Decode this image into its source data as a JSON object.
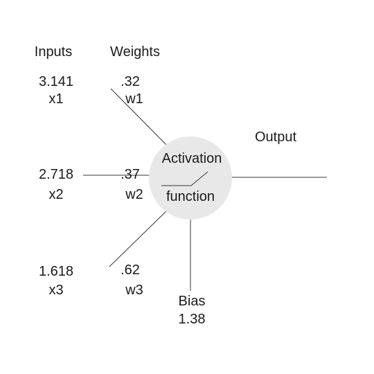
{
  "headers": {
    "inputs": "Inputs",
    "weights": "Weights",
    "output": "Output"
  },
  "inputs": [
    {
      "value": "3.141",
      "name": "x1"
    },
    {
      "value": "2.718",
      "name": "x2"
    },
    {
      "value": "1.618",
      "name": "x3"
    }
  ],
  "weights": [
    {
      "value": ".32",
      "name": "w1"
    },
    {
      "value": ".37",
      "name": "w2"
    },
    {
      "value": ".62",
      "name": "w3"
    }
  ],
  "neuron": {
    "line1": "Activation",
    "line2": "function",
    "fill": "#e8e8e8"
  },
  "bias": {
    "label": "Bias",
    "value": "1.38"
  },
  "colors": {
    "lines": "#333333",
    "text": "#1a1a1a"
  }
}
